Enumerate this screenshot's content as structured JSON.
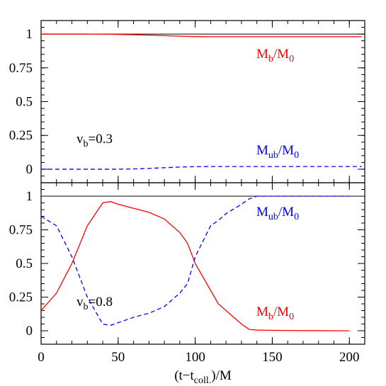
{
  "chart_data": [
    {
      "type": "line",
      "xlim": [
        0,
        210
      ],
      "ylim": [
        -0.1,
        1.1
      ],
      "xticks": [
        0,
        50,
        100,
        150,
        200
      ],
      "yticks": [
        0,
        0.25,
        0.5,
        0.75,
        1
      ],
      "xminor": 10,
      "yminor": 0.05,
      "reference_line": 1,
      "xtick_labels": false,
      "x": [
        0,
        10,
        20,
        30,
        40,
        50,
        60,
        70,
        80,
        90,
        100,
        110,
        120,
        130,
        140,
        150,
        160,
        170,
        180,
        190,
        200,
        208
      ],
      "series": [
        {
          "name": [
            "M",
            "b",
            "/M",
            "0"
          ],
          "color": "#ff0000",
          "linestyle": "solid",
          "values": [
            1,
            1,
            1,
            1,
            0.999,
            0.997,
            0.995,
            0.992,
            0.988,
            0.984,
            0.981,
            0.98,
            0.98,
            0.98,
            0.98,
            0.98,
            0.98,
            0.98,
            0.98,
            0.98,
            0.98,
            0.98
          ]
        },
        {
          "name": [
            "M",
            "ub",
            "/M",
            "0"
          ],
          "color": "#0000ff",
          "linestyle": "dashed",
          "values": [
            0,
            0,
            0,
            0,
            0,
            0,
            0.002,
            0.006,
            0.011,
            0.016,
            0.019,
            0.02,
            0.02,
            0.02,
            0.02,
            0.02,
            0.02,
            0.02,
            0.02,
            0.02,
            0.02,
            0.02
          ]
        }
      ],
      "annotation": [
        "v",
        "b",
        "=0.3"
      ]
    },
    {
      "type": "line",
      "xlim": [
        0,
        210
      ],
      "ylim": [
        -0.1,
        1.1
      ],
      "xticks": [
        0,
        50,
        100,
        150,
        200
      ],
      "yticks": [
        0,
        0.25,
        0.5,
        0.75,
        1
      ],
      "xminor": 10,
      "yminor": 0.05,
      "reference_line": 1,
      "xtick_labels": true,
      "xlabel": [
        "(t−t",
        "coll.",
        ")/M"
      ],
      "x": [
        0,
        10,
        20,
        30,
        40,
        45,
        50,
        60,
        70,
        80,
        90,
        95,
        100,
        110,
        115,
        120,
        130,
        135,
        140,
        150,
        160,
        170,
        180,
        190,
        200
      ],
      "series": [
        {
          "name": [
            "M",
            "b",
            "/M",
            "0"
          ],
          "color": "#ff0000",
          "linestyle": "solid",
          "values": [
            0.15,
            0.28,
            0.5,
            0.78,
            0.95,
            0.96,
            0.94,
            0.91,
            0.88,
            0.83,
            0.73,
            0.65,
            0.5,
            0.3,
            0.2,
            0.15,
            0.05,
            0.01,
            0.005,
            0.003,
            0.002,
            0.001,
            0.001,
            0,
            0
          ]
        },
        {
          "name": [
            "M",
            "ub",
            "/M",
            "0"
          ],
          "color": "#0000ff",
          "linestyle": "dashed",
          "values": [
            0.85,
            0.78,
            0.55,
            0.25,
            0.05,
            0.04,
            0.06,
            0.1,
            0.13,
            0.18,
            0.28,
            0.35,
            0.55,
            0.78,
            0.82,
            0.87,
            0.94,
            0.98,
            1,
            1,
            1,
            1,
            1,
            1,
            1
          ]
        }
      ],
      "annotation": [
        "v",
        "b",
        "=0.8"
      ]
    }
  ]
}
